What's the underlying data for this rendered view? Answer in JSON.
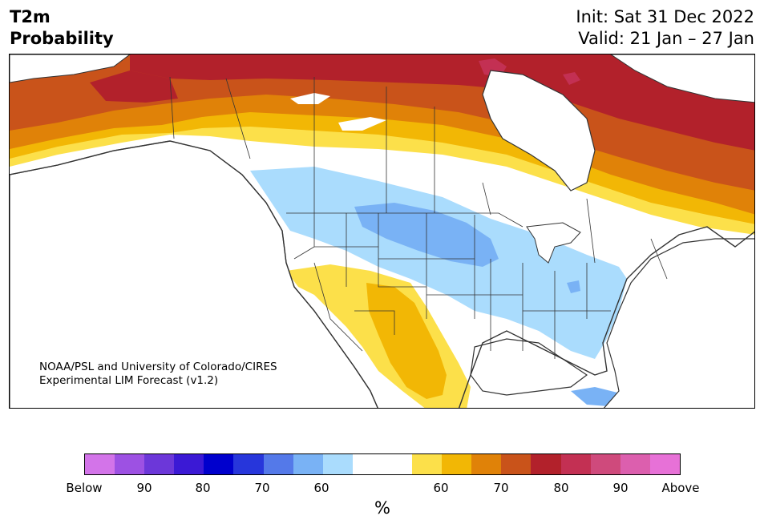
{
  "header": {
    "variable": "T2m",
    "product": "Probability",
    "init": "Init: Sat 31 Dec 2022",
    "valid": "Valid: 21 Jan – 27 Jan"
  },
  "credit": {
    "line1": "NOAA/PSL and University of Colorado/CIRES",
    "line2": "Experimental LIM Forecast (v1.2)"
  },
  "colorbar": {
    "colors": [
      "#d374e9",
      "#9d51e3",
      "#6c37d9",
      "#3b19d5",
      "#0000cd",
      "#2736db",
      "#5479e9",
      "#79b2f5",
      "#aadcfd",
      "#ffffff",
      "#ffffff",
      "#fce04a",
      "#f2b705",
      "#e08208",
      "#c9531a",
      "#b2212b",
      "#c33053",
      "#cf4a7c",
      "#dc5fae",
      "#e771d7"
    ],
    "tick_labels": [
      "Below",
      "90",
      "80",
      "70",
      "60",
      "60",
      "70",
      "80",
      "90",
      "Above"
    ],
    "unit": "%"
  },
  "map": {
    "ocean_color": "#ffffff",
    "coastline_color": "#333333",
    "categories": {
      "above_90": "#c33053",
      "above_80": "#b2212b",
      "above_70": "#c9531a",
      "above_65": "#e08208",
      "above_60": "#f2b705",
      "above_55": "#fce04a",
      "below_55": "#aadcfd",
      "below_60": "#79b2f5",
      "below_65": "#5479e9"
    }
  }
}
